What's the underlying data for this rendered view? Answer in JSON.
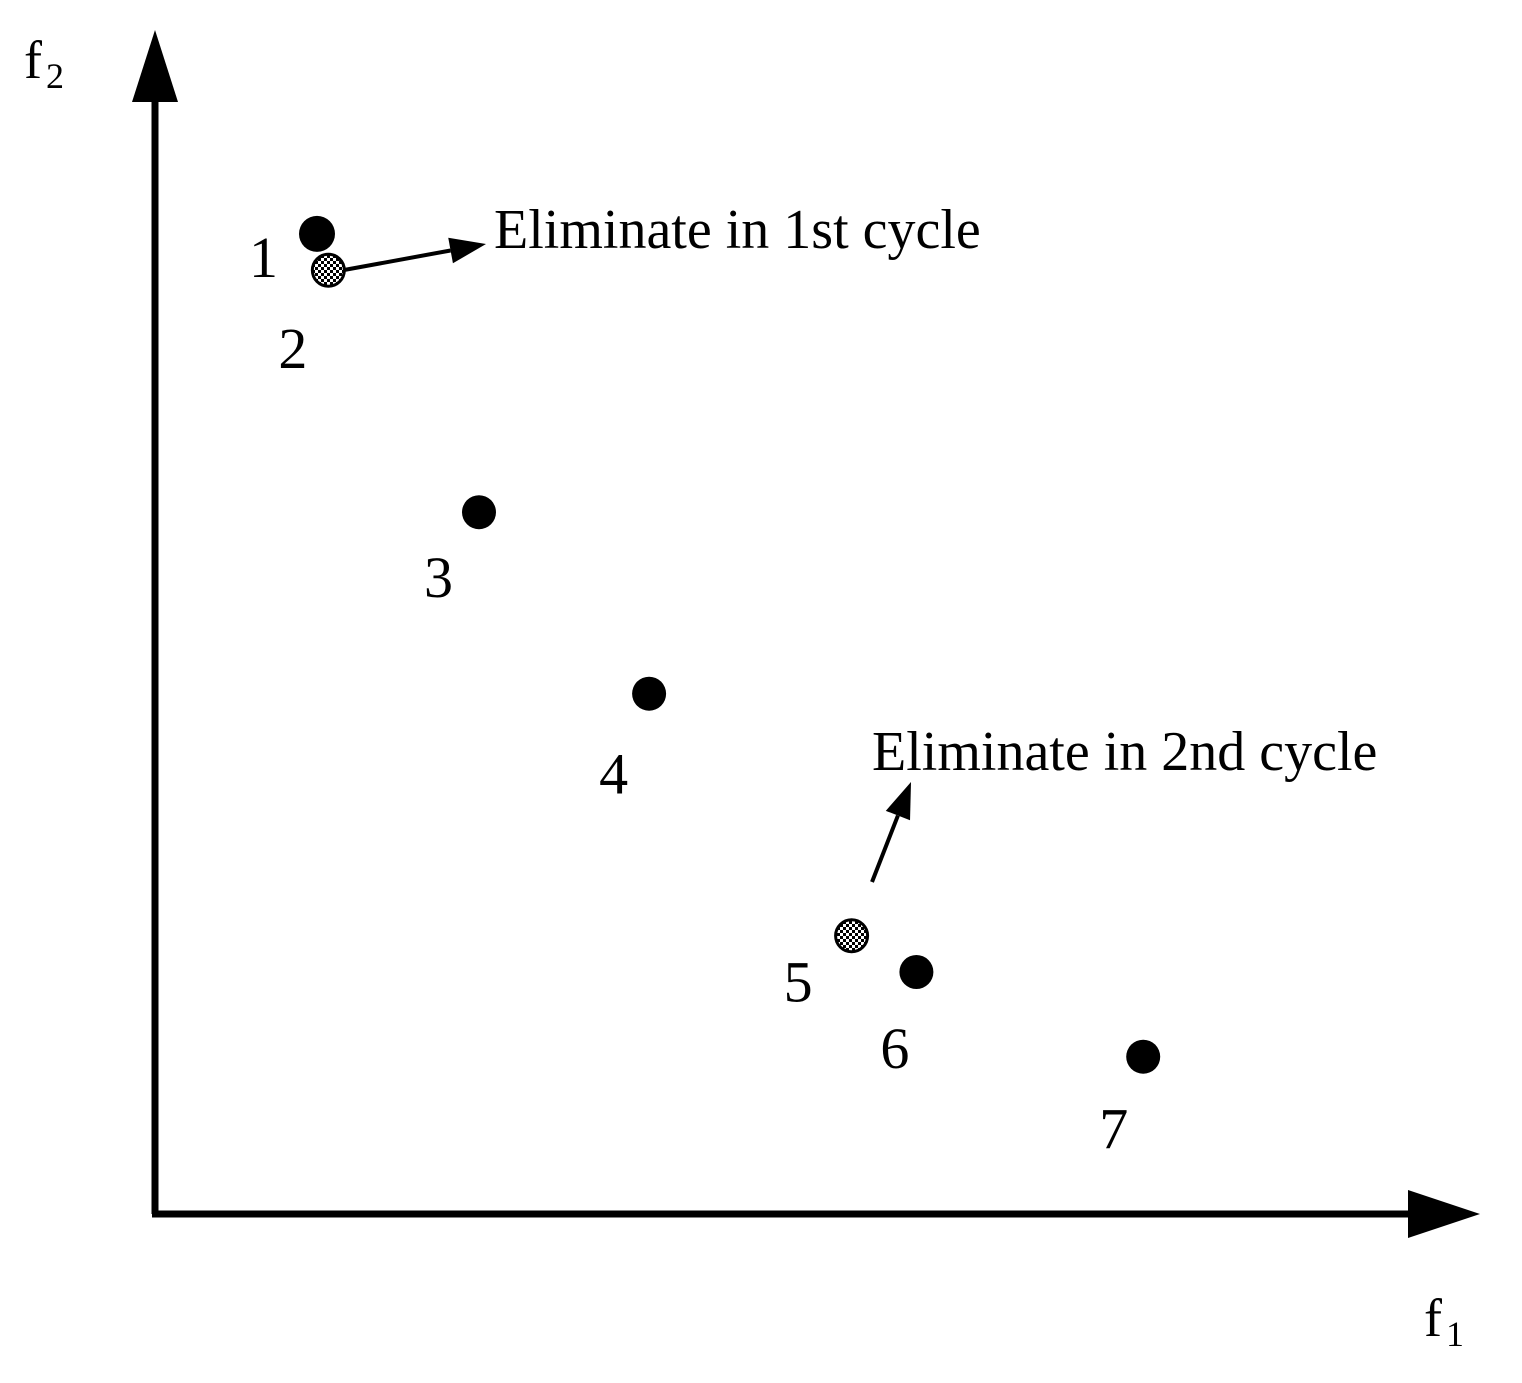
{
  "axes": {
    "x_label": {
      "main": "f",
      "sub": "1"
    },
    "y_label": {
      "main": "f",
      "sub": "2"
    }
  },
  "points": [
    {
      "id": "1",
      "f1": 1.0,
      "f2": 8.1,
      "kind": "solid"
    },
    {
      "id": "2",
      "f1": 1.07,
      "f2": 7.8,
      "kind": "checkered"
    },
    {
      "id": "3",
      "f1": 2.0,
      "f2": 5.8,
      "kind": "solid"
    },
    {
      "id": "4",
      "f1": 3.05,
      "f2": 4.3,
      "kind": "solid"
    },
    {
      "id": "5",
      "f1": 4.3,
      "f2": 2.3,
      "kind": "checkered"
    },
    {
      "id": "6",
      "f1": 4.7,
      "f2": 2.0,
      "kind": "solid"
    },
    {
      "id": "7",
      "f1": 6.1,
      "f2": 1.3,
      "kind": "solid"
    }
  ],
  "annotations": [
    {
      "text": "Eliminate in 1st cycle",
      "target_point": "2"
    },
    {
      "text": "Eliminate in 2nd cycle",
      "target_point": "5"
    }
  ],
  "colors": {
    "ink": "#000000",
    "background": "#ffffff"
  }
}
